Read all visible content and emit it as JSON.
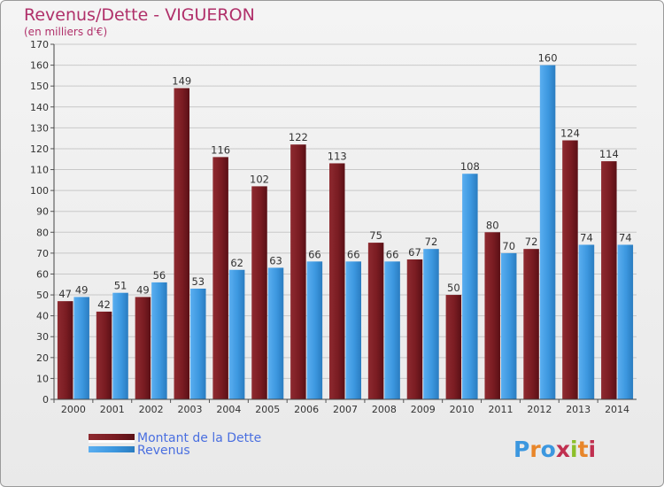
{
  "chart_data": {
    "type": "bar",
    "title": "Revenus/Dette - VIGUERON",
    "subtitle": "(en milliers d'€)",
    "categories": [
      "2000",
      "2001",
      "2002",
      "2003",
      "2004",
      "2005",
      "2006",
      "2007",
      "2008",
      "2009",
      "2010",
      "2011",
      "2012",
      "2013",
      "2014"
    ],
    "series": [
      {
        "name": "Montant de la Dette",
        "color": "#7a1c22",
        "values": [
          47,
          42,
          49,
          149,
          116,
          102,
          122,
          113,
          75,
          67,
          50,
          80,
          72,
          124,
          114
        ]
      },
      {
        "name": "Revenus",
        "color": "#3c97df",
        "values": [
          49,
          51,
          56,
          53,
          62,
          63,
          66,
          66,
          66,
          72,
          108,
          70,
          160,
          74,
          74
        ]
      }
    ],
    "ylim": [
      0,
      170
    ],
    "yticks": [
      0,
      10,
      20,
      30,
      40,
      50,
      60,
      70,
      80,
      90,
      100,
      110,
      120,
      130,
      140,
      150,
      160,
      170
    ],
    "grid": true,
    "legend_position": "bottom-left",
    "logo": {
      "text": "Proxiti",
      "letter_colors": [
        "#3c97df",
        "#e8862a",
        "#3c97df",
        "#c03050",
        "#8cbf2a",
        "#e8862a",
        "#c03050"
      ]
    }
  }
}
